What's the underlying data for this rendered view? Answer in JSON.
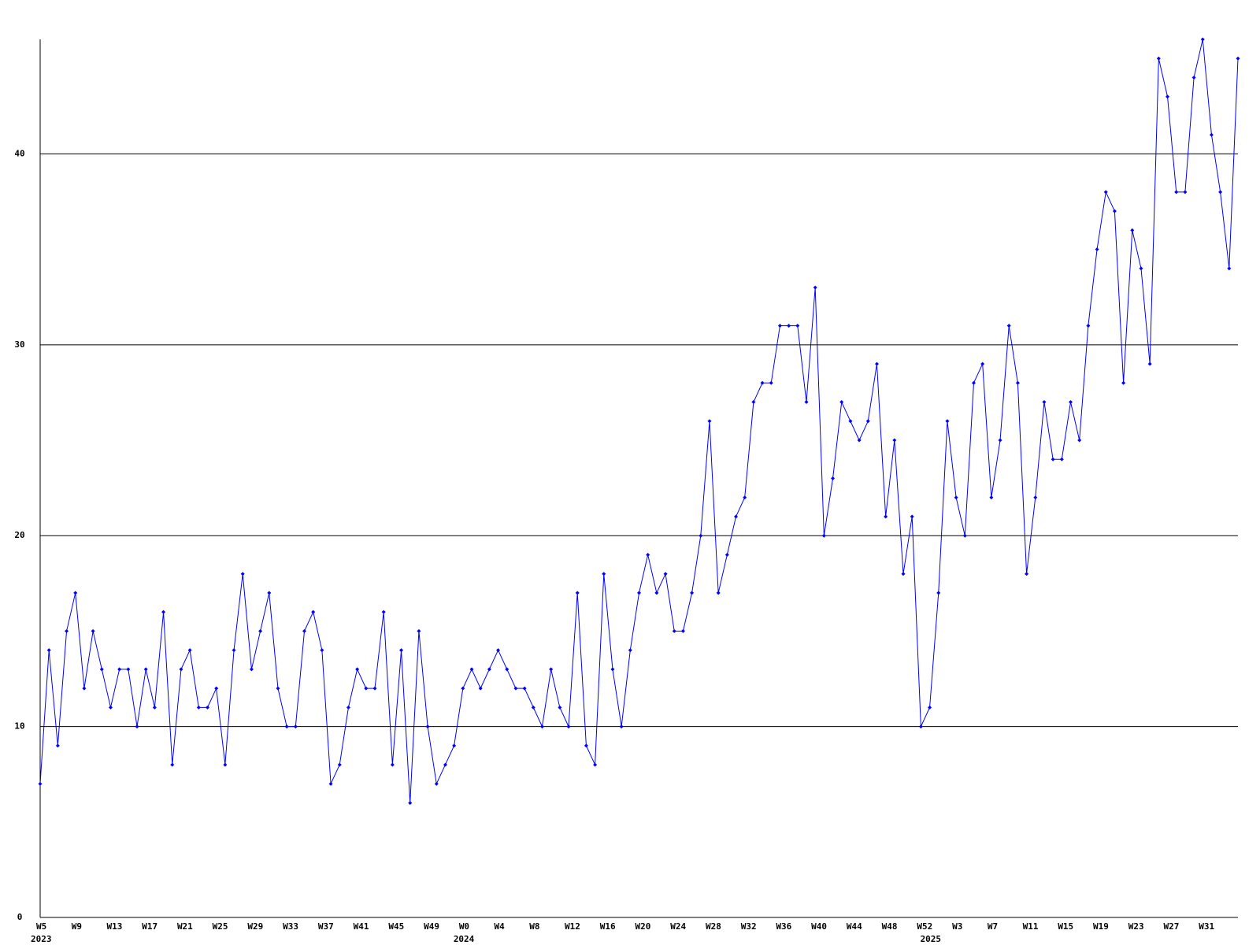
{
  "chart_data": {
    "type": "line",
    "categories": [
      "W5",
      null,
      null,
      null,
      "W9",
      null,
      null,
      null,
      "W13",
      null,
      null,
      null,
      "W17",
      null,
      null,
      null,
      "W21",
      null,
      null,
      null,
      "W25",
      null,
      null,
      null,
      "W29",
      null,
      null,
      null,
      "W33",
      null,
      null,
      null,
      "W37",
      null,
      null,
      null,
      "W41",
      null,
      null,
      null,
      "W45",
      null,
      null,
      null,
      "W49",
      null,
      null,
      null,
      "W0",
      null,
      null,
      null,
      "W4",
      null,
      null,
      null,
      "W8",
      null,
      null,
      null,
      "W12",
      null,
      null,
      null,
      "W16",
      null,
      null,
      null,
      "W20",
      null,
      null,
      null,
      "W24",
      null,
      null,
      null,
      "W28",
      null,
      null,
      null,
      "W32",
      null,
      null,
      null,
      "W36",
      null,
      null,
      null,
      "W40",
      null,
      null,
      null,
      "W44",
      null,
      null,
      null,
      "W48",
      null,
      null,
      null,
      "W52",
      null,
      null,
      null,
      "W3",
      null,
      null,
      null,
      "W7",
      null,
      null,
      null,
      "W11",
      null,
      null,
      null,
      "W15",
      null,
      null,
      null,
      "W19",
      null,
      null,
      null,
      "W23",
      null,
      null,
      null,
      "W27",
      null,
      null,
      null,
      "W31",
      null,
      null,
      null,
      null
    ],
    "category_years": [
      "2023",
      null,
      null,
      null,
      null,
      null,
      null,
      null,
      null,
      null,
      null,
      null,
      null,
      null,
      null,
      null,
      null,
      null,
      null,
      null,
      null,
      null,
      null,
      null,
      null,
      null,
      null,
      null,
      null,
      null,
      null,
      null,
      null,
      null,
      null,
      null,
      null,
      null,
      null,
      null,
      null,
      null,
      null,
      null,
      null,
      null,
      null,
      null,
      "2024",
      null,
      null,
      null,
      null,
      null,
      null,
      null,
      null,
      null,
      null,
      null,
      null,
      null,
      null,
      null,
      null,
      null,
      null,
      null,
      null,
      null,
      null,
      null,
      null,
      null,
      null,
      null,
      null,
      null,
      null,
      null,
      null,
      null,
      null,
      null,
      null,
      null,
      null,
      null,
      null,
      null,
      null,
      null,
      null,
      null,
      null,
      null,
      null,
      null,
      null,
      null,
      null,
      "2025",
      null,
      null,
      null,
      null,
      null,
      null,
      null,
      null,
      null,
      null,
      null,
      null,
      null,
      null,
      null,
      null,
      null,
      null,
      null,
      null,
      null,
      null,
      null,
      null,
      null,
      null,
      null,
      null,
      null,
      null,
      null,
      null,
      null,
      null,
      null
    ],
    "series": [
      {
        "color": "#0000ff",
        "values": [
          7,
          14,
          9,
          15,
          17,
          12,
          15,
          13,
          11,
          13,
          13,
          10,
          13,
          11,
          16,
          8,
          13,
          14,
          11,
          11,
          12,
          8,
          14,
          18,
          13,
          15,
          17,
          12,
          10,
          10,
          15,
          16,
          14,
          7,
          8,
          11,
          13,
          12,
          12,
          16,
          8,
          14,
          6,
          15,
          10,
          7,
          8,
          9,
          12,
          13,
          12,
          13,
          14,
          13,
          12,
          12,
          11,
          10,
          13,
          11,
          10,
          17,
          9,
          8,
          18,
          13,
          10,
          14,
          17,
          19,
          17,
          18,
          15,
          15,
          17,
          20,
          26,
          17,
          19,
          21,
          22,
          27,
          28,
          28,
          31,
          31,
          31,
          27,
          33,
          20,
          23,
          27,
          26,
          25,
          26,
          29,
          21,
          25,
          18,
          21,
          10,
          11,
          17,
          26,
          22,
          20,
          28,
          29,
          22,
          25,
          31,
          28,
          18,
          22,
          27,
          24,
          24,
          27,
          25,
          31,
          35,
          38,
          37,
          28,
          36,
          34,
          29,
          45,
          43,
          38,
          38,
          44,
          46,
          41,
          38,
          34,
          45
        ]
      }
    ],
    "ylim": [
      0,
      46
    ],
    "yticks": [
      0,
      10,
      20,
      30,
      40
    ],
    "grid": true
  }
}
